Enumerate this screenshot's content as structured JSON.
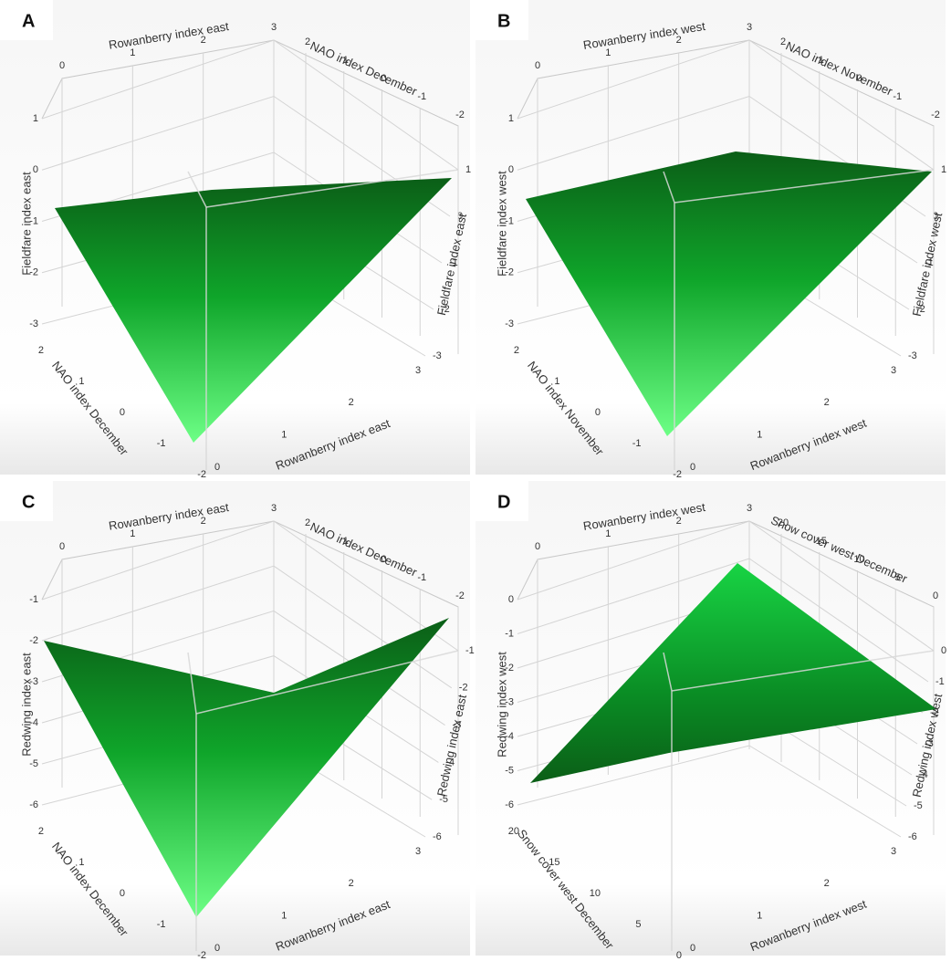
{
  "chart_data": [
    {
      "type": "surface3d",
      "label": "A",
      "x_title": "Rowanberry index east",
      "y_title": "NAO index December",
      "z_title": "Fieldfare index east",
      "xlim": [
        0,
        3
      ],
      "xticks": [
        0,
        1,
        2,
        3
      ],
      "ylim": [
        -2,
        2
      ],
      "yticks": [
        -2,
        -1,
        0,
        1,
        2
      ],
      "zlim": [
        -3,
        1
      ],
      "zticks": [
        -3,
        -2,
        -1,
        0,
        1
      ]
    },
    {
      "type": "surface3d",
      "label": "B",
      "x_title": "Rowanberry index west",
      "y_title": "NAO index November",
      "z_title": "Fieldfare index west",
      "xlim": [
        0,
        3
      ],
      "xticks": [
        0,
        1,
        2,
        3
      ],
      "ylim": [
        -2,
        2
      ],
      "yticks": [
        -2,
        -1,
        0,
        1,
        2
      ],
      "zlim": [
        -3,
        1
      ],
      "zticks": [
        -3,
        -2,
        -1,
        0,
        1
      ]
    },
    {
      "type": "surface3d",
      "label": "C",
      "x_title": "Rowanberry index east",
      "y_title": "NAO index December",
      "z_title": "Redwing index east",
      "xlim": [
        0,
        3
      ],
      "xticks": [
        0,
        1,
        2,
        3
      ],
      "ylim": [
        -2,
        2
      ],
      "yticks": [
        -2,
        -1,
        0,
        1,
        2
      ],
      "zlim": [
        -6,
        -1
      ],
      "zticks": [
        -6,
        -5,
        -4,
        -3,
        -2,
        -1
      ]
    },
    {
      "type": "surface3d",
      "label": "D",
      "x_title": "Rowanberry index west",
      "y_title": "Snow cover west December",
      "z_title": "Redwing index west",
      "xlim": [
        0,
        3
      ],
      "xticks": [
        0,
        1,
        2,
        3
      ],
      "ylim": [
        0,
        20
      ],
      "yticks": [
        0,
        5,
        10,
        15,
        20
      ],
      "zlim": [
        -6,
        0
      ],
      "zticks": [
        -6,
        -5,
        -4,
        -3,
        -2,
        -1,
        0
      ]
    }
  ]
}
